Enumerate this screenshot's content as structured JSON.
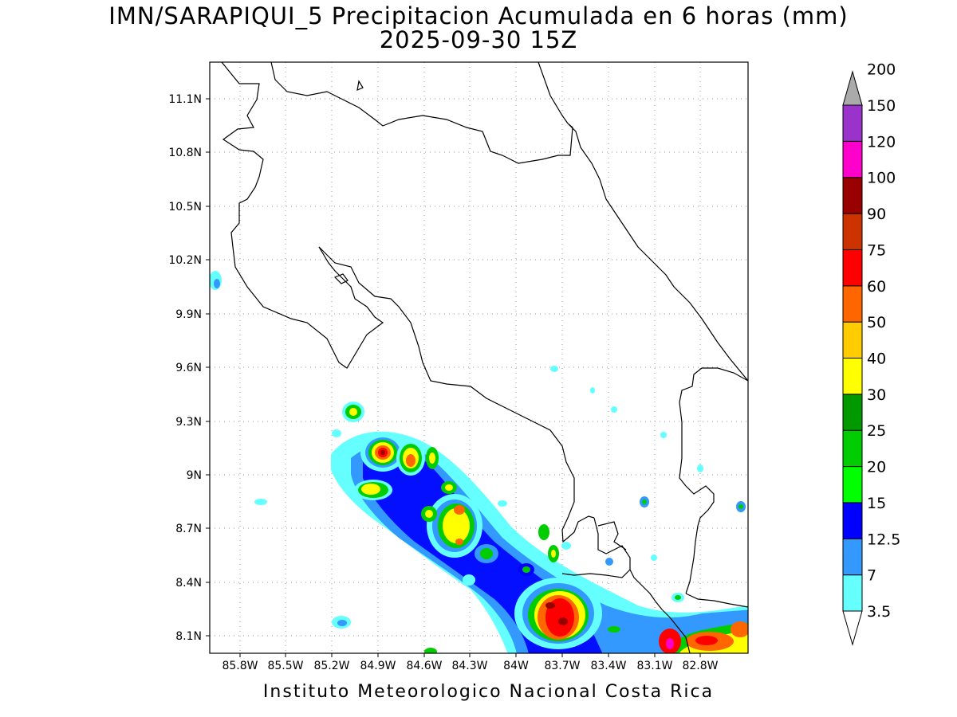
{
  "title": {
    "line1": "IMN/SARAPIQUI_5 Precipitacion Acumulada en 6 horas (mm)",
    "line2": "2025-09-30 15Z"
  },
  "footer": "Instituto Meteorologico Nacional Costa Rica",
  "map": {
    "lon_range": [
      -86.0,
      -82.5
    ],
    "lat_range": [
      8.0,
      11.3
    ],
    "lon_ticks": [
      "85.8W",
      "85.5W",
      "85.2W",
      "84.9W",
      "84.6W",
      "84.3W",
      "84W",
      "83.7W",
      "83.4W",
      "83.1W",
      "82.8W"
    ],
    "lat_ticks": [
      "11.1N",
      "10.8N",
      "10.5N",
      "10.2N",
      "9.9N",
      "9.6N",
      "9.3N",
      "9N",
      "8.7N",
      "8.4N",
      "8.1N"
    ],
    "grid": true
  },
  "colorbar": {
    "levels": [
      "3.5",
      "7",
      "12.5",
      "15",
      "20",
      "25",
      "30",
      "40",
      "50",
      "60",
      "75",
      "90",
      "100",
      "120",
      "150",
      "200"
    ],
    "colors": [
      "#66ffff",
      "#3399ff",
      "#0000ff",
      "#00ff00",
      "#00cc00",
      "#009900",
      "#ffff00",
      "#ffcc00",
      "#ff6600",
      "#ff0000",
      "#cc3300",
      "#990000",
      "#ff00cc",
      "#9933cc",
      "#f2f2f2",
      "#aaaaaa"
    ]
  }
}
